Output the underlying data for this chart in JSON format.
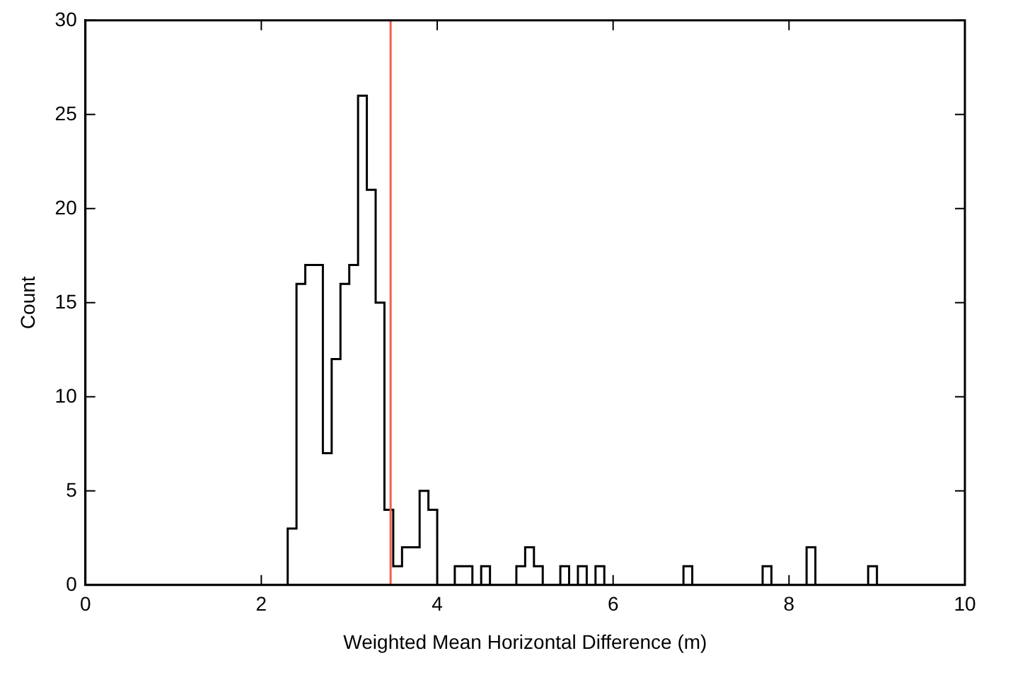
{
  "chart_data": {
    "type": "histogram",
    "xlabel": "Weighted Mean Horizontal Difference (m)",
    "ylabel": "Count",
    "bins": [
      2.3,
      2.4,
      2.5,
      2.6,
      2.7,
      2.8,
      2.9,
      3.0,
      3.1,
      3.2,
      3.3,
      3.4,
      3.5,
      3.6,
      3.7,
      3.8,
      3.9,
      4.0,
      4.1,
      4.2,
      4.3,
      4.4,
      4.5,
      4.6,
      4.7,
      4.8,
      4.9,
      5.0,
      5.1,
      5.2,
      5.3,
      5.4,
      5.5,
      5.6,
      5.7,
      5.8,
      5.9,
      6.0,
      6.1,
      6.2,
      6.3,
      6.4,
      6.5,
      6.6,
      6.7,
      6.8,
      6.9,
      7.0,
      7.1,
      7.2,
      7.3,
      7.4,
      7.5,
      7.6,
      7.7,
      7.8,
      7.9,
      8.0,
      8.1,
      8.2,
      8.3,
      8.4,
      8.5,
      8.6,
      8.7,
      8.8,
      8.9,
      9.0
    ],
    "values": [
      3,
      16,
      17,
      17,
      7,
      12,
      16,
      17,
      26,
      21,
      15,
      4,
      1,
      2,
      2,
      5,
      4,
      0,
      0,
      1,
      1,
      0,
      1,
      0,
      0,
      0,
      1,
      2,
      1,
      0,
      0,
      1,
      0,
      1,
      0,
      1,
      0,
      0,
      0,
      0,
      0,
      0,
      0,
      0,
      0,
      1,
      0,
      0,
      0,
      0,
      0,
      0,
      0,
      0,
      1,
      0,
      0,
      0,
      0,
      2,
      0,
      0,
      0,
      0,
      0,
      0,
      1
    ],
    "color": "#000000",
    "xlim": [
      0,
      10
    ],
    "xticks": [
      0,
      2,
      4,
      6,
      8,
      10
    ],
    "ylim": [
      0,
      30
    ],
    "yticks": [
      0,
      5,
      10,
      15,
      20,
      25,
      30
    ],
    "grid": false,
    "ref_lines": [
      {
        "axis": "x",
        "value": 3.47,
        "color": "#f0604a"
      }
    ]
  }
}
